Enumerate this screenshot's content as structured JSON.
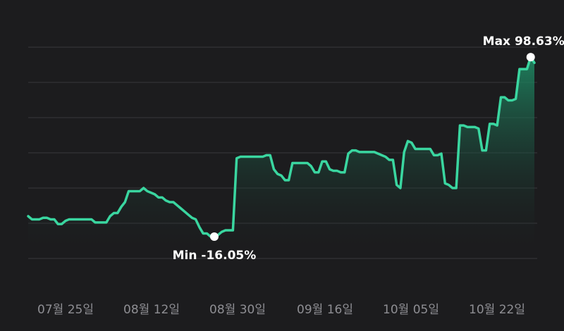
{
  "chart_data": {
    "type": "area",
    "title": "",
    "xlabel": "",
    "ylabel": "",
    "x_tick_labels": [
      "07월 25일",
      "08월 12일",
      "08월 30일",
      "09월 16일",
      "10월 05일",
      "10월 22일"
    ],
    "ylim": [
      -30,
      105
    ],
    "grid": true,
    "legend": "none",
    "min_annotation": {
      "label": "Min -16.05%",
      "value": -16.05
    },
    "max_annotation": {
      "label": "Max 98.63%",
      "value": 98.63
    },
    "series": [
      {
        "values": [
          -3,
          -5,
          -5,
          -5,
          -4,
          -4,
          -5,
          -5,
          -8,
          -8,
          -6,
          -5,
          -5,
          -5,
          -5,
          -5,
          -5,
          -5,
          -7,
          -7,
          -7,
          -7,
          -3,
          -1,
          -1,
          3,
          6,
          13,
          13,
          13,
          13,
          15,
          13,
          12,
          11,
          9,
          9,
          7,
          6,
          6,
          4,
          2,
          0,
          -2,
          -4,
          -5,
          -10,
          -14,
          -14,
          -16,
          -16.05,
          -15,
          -13,
          -12,
          -12,
          -12,
          34,
          35,
          35,
          35,
          35,
          35,
          35,
          35,
          36,
          36,
          27,
          24,
          23,
          20,
          20,
          31,
          31,
          31,
          31,
          31,
          29,
          25,
          25,
          32,
          32,
          27,
          26,
          26,
          25,
          25,
          37,
          39,
          39,
          38,
          38,
          38,
          38,
          38,
          37,
          36,
          35,
          33,
          33,
          17,
          15,
          38,
          45,
          44,
          40,
          40,
          40,
          40,
          40,
          36,
          36,
          37,
          18,
          17,
          15,
          15,
          55,
          55,
          54,
          54,
          54,
          53,
          39,
          39,
          56,
          56,
          55,
          73,
          73,
          71,
          71,
          72,
          91,
          91,
          91,
          98.63,
          95
        ],
        "color": "#3ad6a0"
      }
    ]
  }
}
